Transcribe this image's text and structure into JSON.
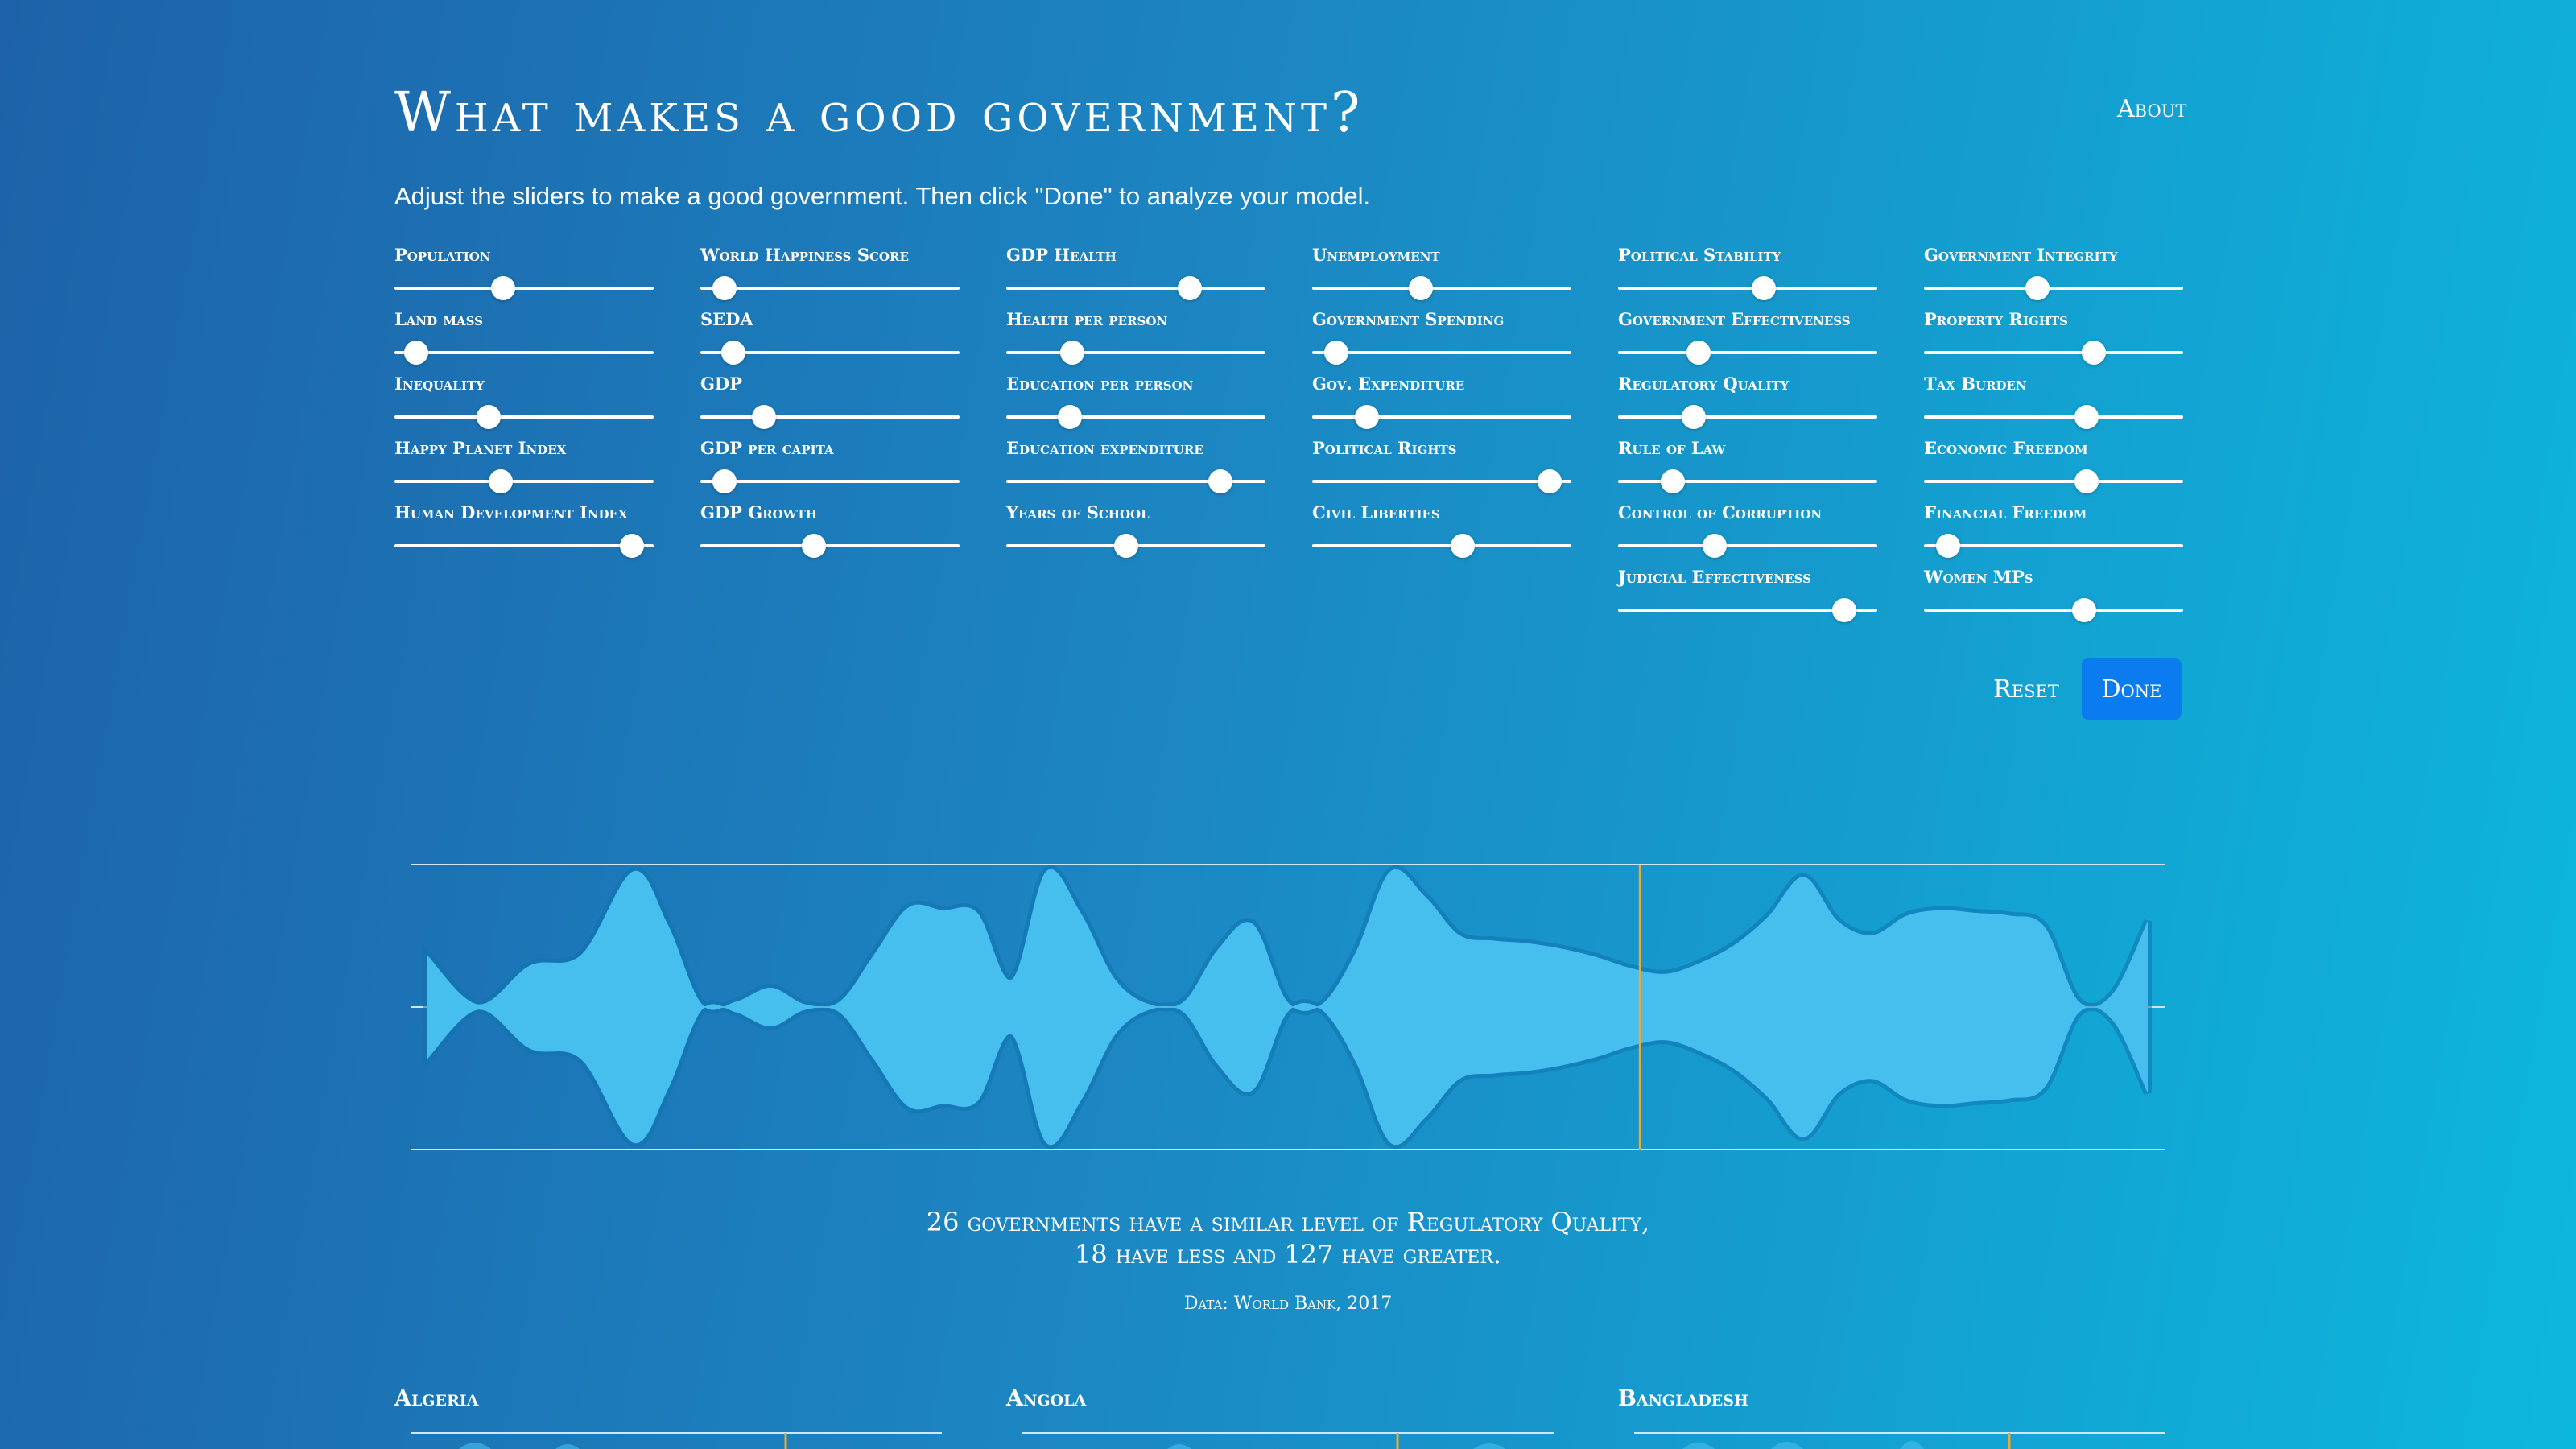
{
  "header": {
    "title": "What makes a good government?",
    "about_label": "About",
    "instructions": "Adjust the sliders to make a good government. Then click \"Done\" to analyze your model."
  },
  "sliders": [
    {
      "label": "Population",
      "value": 0.41
    },
    {
      "label": "Land mass",
      "value": 0.04
    },
    {
      "label": "Inequality",
      "value": 0.35
    },
    {
      "label": "Happy Planet Index",
      "value": 0.4
    },
    {
      "label": "Human Development Index",
      "value": 0.96
    },
    {
      "label": "World Happiness Score",
      "value": 0.05
    },
    {
      "label": "SEDA",
      "value": 0.09
    },
    {
      "label": "GDP",
      "value": 0.22
    },
    {
      "label": "GDP per capita",
      "value": 0.05
    },
    {
      "label": "GDP Growth",
      "value": 0.43
    },
    {
      "label": "GDP Health",
      "value": 0.73
    },
    {
      "label": "Health per person",
      "value": 0.23
    },
    {
      "label": "Education per person",
      "value": 0.22
    },
    {
      "label": "Education expenditure",
      "value": 0.86
    },
    {
      "label": "Years of School",
      "value": 0.46
    },
    {
      "label": "Unemployment",
      "value": 0.41
    },
    {
      "label": "Government Spending",
      "value": 0.05
    },
    {
      "label": "Gov. Expenditure",
      "value": 0.18
    },
    {
      "label": "Political Rights",
      "value": 0.96
    },
    {
      "label": "Civil Liberties",
      "value": 0.59
    },
    {
      "label": "Political Stability",
      "value": 0.57
    },
    {
      "label": "Government Effectiveness",
      "value": 0.29
    },
    {
      "label": "Regulatory Quality",
      "value": 0.27
    },
    {
      "label": "Rule of Law",
      "value": 0.18
    },
    {
      "label": "Control of Corruption",
      "value": 0.36
    },
    {
      "label": "Judicial Effectiveness",
      "value": 0.91
    },
    {
      "label": "Government Integrity",
      "value": 0.43
    },
    {
      "label": "Property Rights",
      "value": 0.67
    },
    {
      "label": "Tax Burden",
      "value": 0.64
    },
    {
      "label": "Economic Freedom",
      "value": 0.64
    },
    {
      "label": "Financial Freedom",
      "value": 0.05
    },
    {
      "label": "Women MPs",
      "value": 0.63
    }
  ],
  "buttons": {
    "reset_label": "Reset",
    "done_label": "Done"
  },
  "summary": {
    "line1": "26 governments have a similar level of Regulatory Quality,",
    "line2": "18 have less and 127 have greater.",
    "source": "Data: World Bank, 2017"
  },
  "countries": [
    "Algeria",
    "Angola",
    "Bangladesh"
  ],
  "colors": {
    "stream_fill": "#47bfee",
    "stream_shadow": "#1172b0",
    "marker": "#f0a830",
    "axis_line": "#cfe6f5",
    "done_button": "#0a7cf0"
  },
  "chart_data": {
    "type": "area",
    "title": "",
    "xlabel": "",
    "ylabel": "",
    "marker_x": 0.705,
    "x": [
      0.0,
      0.03,
      0.06,
      0.09,
      0.12,
      0.14,
      0.16,
      0.18,
      0.2,
      0.22,
      0.24,
      0.26,
      0.28,
      0.3,
      0.32,
      0.34,
      0.36,
      0.38,
      0.4,
      0.42,
      0.44,
      0.46,
      0.48,
      0.5,
      0.52,
      0.54,
      0.56,
      0.58,
      0.6,
      0.62,
      0.64,
      0.66,
      0.68,
      0.7,
      0.72,
      0.74,
      0.76,
      0.78,
      0.8,
      0.82,
      0.84,
      0.86,
      0.88,
      0.9,
      0.92,
      0.94,
      0.96,
      0.98,
      1.0
    ],
    "values": [
      0.38,
      0.02,
      0.3,
      0.38,
      0.98,
      0.6,
      0.02,
      0.04,
      0.14,
      0.02,
      0.04,
      0.38,
      0.72,
      0.7,
      0.68,
      0.2,
      0.98,
      0.68,
      0.2,
      0.02,
      0.04,
      0.42,
      0.6,
      0.04,
      0.02,
      0.4,
      0.98,
      0.8,
      0.52,
      0.48,
      0.46,
      0.42,
      0.36,
      0.28,
      0.24,
      0.32,
      0.45,
      0.66,
      0.94,
      0.62,
      0.52,
      0.66,
      0.7,
      0.68,
      0.66,
      0.58,
      0.04,
      0.1,
      0.62
    ],
    "ylim": [
      -1,
      1
    ]
  }
}
